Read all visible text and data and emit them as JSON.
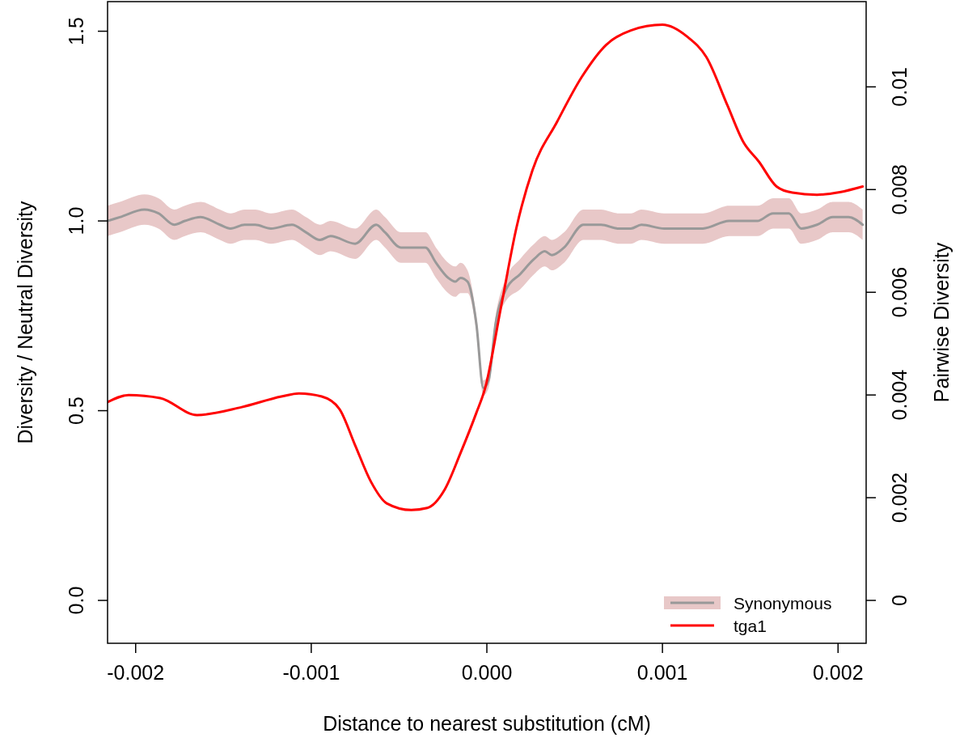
{
  "chart_data": {
    "type": "line",
    "xlabel": "Distance to nearest substitution (cM)",
    "ylabel": "Diversity / Neutral Diversity",
    "y2label": "Pairwise Diversity",
    "xlim": [
      -0.00216,
      0.00216
    ],
    "xticks": [
      {
        "value": -0.002,
        "label": "-0.002"
      },
      {
        "value": -0.001,
        "label": "-0.001"
      },
      {
        "value": 0,
        "label": "0.000"
      },
      {
        "value": 0.001,
        "label": "0.001"
      },
      {
        "value": 0.002,
        "label": "0.002"
      }
    ],
    "ylim": [
      -0.113,
      1.578
    ],
    "yticks": [
      {
        "value": 0,
        "label": "0.0"
      },
      {
        "value": 0.5,
        "label": "0.5"
      },
      {
        "value": 1,
        "label": "1.0"
      },
      {
        "value": 1.5,
        "label": "1.5"
      }
    ],
    "y2lim": [
      -0.000835,
      0.01166
    ],
    "y2ticks": [
      0,
      0.002,
      0.004,
      0.006,
      0.008,
      0.01
    ],
    "grid": false,
    "legend": "bottom right",
    "series": [
      {
        "name": "Synonymous",
        "color": "#999999",
        "x": [
          -0.00216,
          -0.00209,
          -0.00195,
          -0.00187,
          -0.00178,
          -0.00172,
          -0.00163,
          -0.00152,
          -0.00146,
          -0.00138,
          -0.00132,
          -0.00123,
          -0.00111,
          -0.00103,
          -0.00095,
          -0.00089,
          -0.00075,
          -0.00063,
          -0.00058,
          -0.00049,
          -0.00035,
          -0.00029,
          -0.00022,
          -0.00018,
          -0.00015,
          -0.00011,
          -6e-05,
          -2e-05,
          1e-05,
          5e-05,
          0.00011,
          0.00019,
          0.00027,
          0.00033,
          0.00037,
          0.00044,
          0.00055,
          0.00065,
          0.00075,
          0.00082,
          0.00088,
          0.00101,
          0.0011,
          0.00123,
          0.00138,
          0.00147,
          0.00154,
          0.00163,
          0.00172,
          0.00179,
          0.00188,
          0.00197,
          0.00206,
          0.00214
        ],
        "values": [
          1.0,
          1.01,
          1.03,
          1.02,
          0.99,
          1.0,
          1.01,
          0.99,
          0.98,
          0.99,
          0.99,
          0.98,
          0.99,
          0.97,
          0.95,
          0.96,
          0.94,
          0.99,
          0.97,
          0.93,
          0.93,
          0.89,
          0.85,
          0.84,
          0.85,
          0.84,
          0.73,
          0.56,
          0.58,
          0.73,
          0.82,
          0.86,
          0.9,
          0.92,
          0.91,
          0.93,
          0.99,
          0.99,
          0.98,
          0.98,
          0.99,
          0.98,
          0.98,
          0.98,
          1.0,
          1.0,
          1.0,
          1.02,
          1.02,
          0.98,
          0.99,
          1.01,
          1.01,
          0.99
        ],
        "lower": [
          0.96,
          0.97,
          0.99,
          0.98,
          0.95,
          0.96,
          0.97,
          0.95,
          0.94,
          0.95,
          0.95,
          0.94,
          0.95,
          0.93,
          0.91,
          0.92,
          0.9,
          0.95,
          0.93,
          0.89,
          0.89,
          0.85,
          0.81,
          0.8,
          0.81,
          0.81,
          0.71,
          0.54,
          0.56,
          0.71,
          0.79,
          0.82,
          0.86,
          0.88,
          0.87,
          0.89,
          0.95,
          0.95,
          0.94,
          0.94,
          0.95,
          0.94,
          0.94,
          0.94,
          0.96,
          0.96,
          0.96,
          0.98,
          0.98,
          0.94,
          0.95,
          0.97,
          0.97,
          0.95
        ],
        "upper": [
          1.04,
          1.05,
          1.07,
          1.06,
          1.03,
          1.04,
          1.05,
          1.03,
          1.02,
          1.03,
          1.03,
          1.02,
          1.03,
          1.01,
          0.99,
          1.0,
          0.98,
          1.03,
          1.01,
          0.97,
          0.97,
          0.93,
          0.89,
          0.88,
          0.89,
          0.87,
          0.75,
          0.58,
          0.6,
          0.75,
          0.85,
          0.9,
          0.94,
          0.96,
          0.95,
          0.97,
          1.03,
          1.03,
          1.02,
          1.02,
          1.03,
          1.02,
          1.02,
          1.02,
          1.04,
          1.04,
          1.04,
          1.06,
          1.06,
          1.02,
          1.03,
          1.05,
          1.05,
          1.03
        ]
      },
      {
        "name": "tga1",
        "axis": "y2",
        "color": "#ff0000",
        "x": [
          -0.00216,
          -0.00204,
          -0.00186,
          -0.00165,
          -0.0014,
          -0.00117,
          -0.00107,
          -0.00094,
          -0.00084,
          -0.00075,
          -0.00066,
          -0.00057,
          -0.00043,
          -0.00034,
          -0.00024,
          -0.00015,
          -6e-05,
          -1e-05,
          8e-05,
          0.00017,
          0.00026,
          0.0004,
          0.00054,
          0.00068,
          0.00082,
          0.001,
          0.00114,
          0.00125,
          0.00137,
          0.00146,
          0.00155,
          0.00165,
          0.00174,
          0.00188,
          0.00201,
          0.00214
        ],
        "values": [
          0.00386,
          0.004,
          0.00394,
          0.00361,
          0.00376,
          0.00397,
          0.00403,
          0.00397,
          0.00373,
          0.00302,
          0.00231,
          0.00189,
          0.00176,
          0.0018,
          0.00216,
          0.00287,
          0.00365,
          0.00413,
          0.0057,
          0.00728,
          0.00838,
          0.00932,
          0.01019,
          0.01082,
          0.0111,
          0.01121,
          0.01098,
          0.01058,
          0.00964,
          0.00893,
          0.00854,
          0.00806,
          0.00794,
          0.0079,
          0.00795,
          0.00806
        ]
      }
    ]
  }
}
